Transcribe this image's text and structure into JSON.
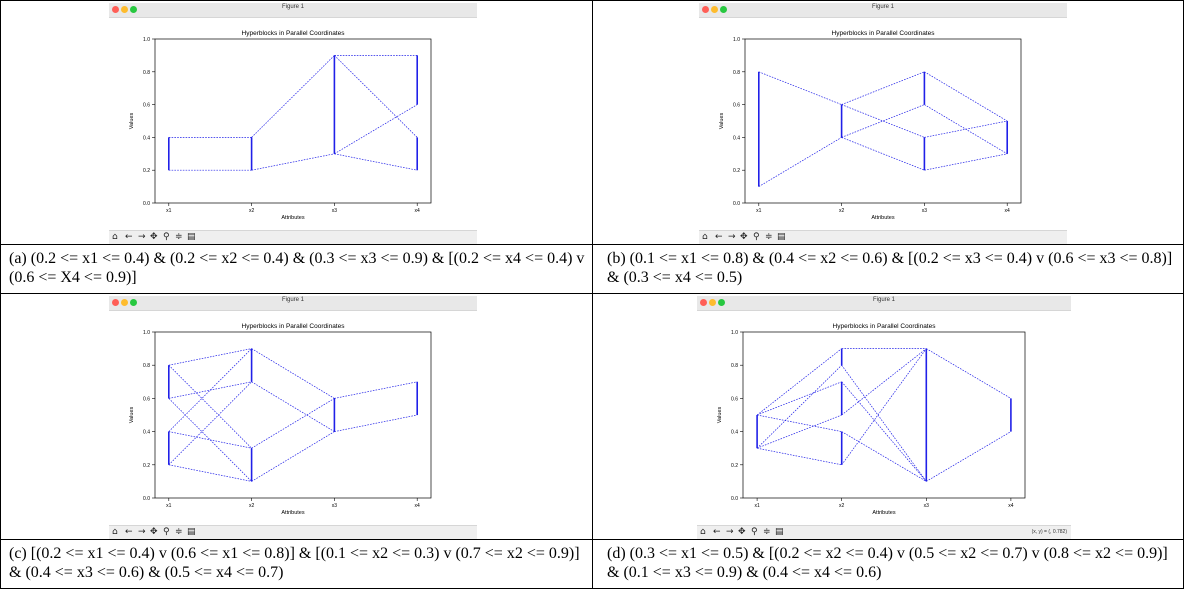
{
  "window_title": "Figure 1",
  "colors": {
    "line": "#2020e8",
    "text": "#000000"
  },
  "toolbar_icons": [
    "home-icon",
    "back-icon",
    "forward-icon",
    "pan-icon",
    "zoom-icon",
    "configure-icon",
    "save-icon"
  ],
  "toolbar_glyphs": [
    "⌂",
    "←",
    "→",
    "✥",
    "⚲",
    "≑",
    "▤"
  ],
  "status_text_d": "(x, y) = (, 0.782)",
  "captions": [
    "(a) (0.2 <= x1 <= 0.4) & (0.2 <= x2 <= 0.4) & (0.3 <= x3 <= 0.9) & [(0.2 <= x4 <= 0.4) v (0.6 <= X4 <= 0.9)]",
    "(b) (0.1 <= x1 <= 0.8) & (0.4 <= x2 <= 0.6) & [(0.2 <= x3 <= 0.4) v (0.6 <= x3 <= 0.8)] & (0.3 <= x4 <= 0.5)",
    "(c) [(0.2 <= x1 <= 0.4) v (0.6 <= x1 <= 0.8)] & [(0.1 <= x2 <= 0.3) v (0.7 <= x2 <= 0.9)] & (0.4 <= x3 <= 0.6) & (0.5 <= x4 <= 0.7)",
    "(d) (0.3 <= x1 <= 0.5) & [(0.2 <= x2 <= 0.4) v (0.5 <= x2 <= 0.7) v (0.8 <= x2 <= 0.9)] & (0.1 <= x3 <= 0.9) & (0.4 <= x4 <= 0.6)"
  ],
  "chart_data": [
    {
      "type": "line",
      "title": "Hyperblocks in Parallel Coordinates",
      "xlabel": "Attributes",
      "ylabel": "Values",
      "categories": [
        "x1",
        "x2",
        "x3",
        "x4"
      ],
      "ylim": [
        0,
        1
      ],
      "yticks": [
        "0.0",
        "0.2",
        "0.4",
        "0.6",
        "0.8",
        "1.0"
      ],
      "grid": false,
      "intervals": [
        [
          0.2,
          0.4
        ],
        [
          0.2,
          0.4
        ],
        [
          0.3,
          0.9
        ],
        [
          0.6,
          0.9
        ],
        [
          0.2,
          0.4
        ]
      ],
      "segments": [
        [
          1,
          0.2,
          2,
          0.2
        ],
        [
          1,
          0.4,
          2,
          0.4
        ],
        [
          2,
          0.2,
          3,
          0.3
        ],
        [
          2,
          0.4,
          3,
          0.9
        ],
        [
          3,
          0.3,
          4,
          0.6
        ],
        [
          3,
          0.9,
          4,
          0.9
        ],
        [
          3,
          0.3,
          4,
          0.2
        ],
        [
          3,
          0.9,
          4,
          0.4
        ]
      ]
    },
    {
      "type": "line",
      "title": "Hyperblocks in Parallel Coordinates",
      "xlabel": "Attributes",
      "ylabel": "Values",
      "categories": [
        "x1",
        "x2",
        "x3",
        "x4"
      ],
      "ylim": [
        0,
        1
      ],
      "yticks": [
        "0.0",
        "0.2",
        "0.4",
        "0.6",
        "0.8",
        "1.0"
      ],
      "grid": false,
      "intervals": [
        [
          0.1,
          0.8
        ],
        [
          0.4,
          0.6
        ],
        [
          0.2,
          0.4
        ],
        [
          0.3,
          0.5
        ],
        [
          0.6,
          0.8
        ]
      ],
      "segments": [
        [
          1,
          0.1,
          2,
          0.4
        ],
        [
          1,
          0.8,
          2,
          0.6
        ],
        [
          2,
          0.4,
          3,
          0.2
        ],
        [
          2,
          0.6,
          3,
          0.4
        ],
        [
          2,
          0.4,
          3,
          0.6
        ],
        [
          2,
          0.6,
          3,
          0.8
        ],
        [
          3,
          0.2,
          4,
          0.3
        ],
        [
          3,
          0.4,
          4,
          0.5
        ],
        [
          3,
          0.6,
          4,
          0.3
        ],
        [
          3,
          0.8,
          4,
          0.5
        ]
      ]
    },
    {
      "type": "line",
      "title": "Hyperblocks in Parallel Coordinates",
      "xlabel": "Attributes",
      "ylabel": "Values",
      "categories": [
        "x1",
        "x2",
        "x3",
        "x4"
      ],
      "ylim": [
        0,
        1
      ],
      "yticks": [
        "0.0",
        "0.2",
        "0.4",
        "0.6",
        "0.8",
        "1.0"
      ],
      "grid": false,
      "intervals": [
        [
          0.2,
          0.4
        ],
        [
          0.6,
          0.8
        ],
        [
          0.1,
          0.3
        ],
        [
          0.7,
          0.9
        ],
        [
          0.4,
          0.6
        ],
        [
          0.5,
          0.7
        ]
      ],
      "segments": [
        [
          1,
          0.2,
          2,
          0.1
        ],
        [
          1,
          0.4,
          2,
          0.3
        ],
        [
          1,
          0.6,
          2,
          0.1
        ],
        [
          1,
          0.8,
          2,
          0.3
        ],
        [
          1,
          0.2,
          2,
          0.7
        ],
        [
          1,
          0.4,
          2,
          0.9
        ],
        [
          1,
          0.6,
          2,
          0.7
        ],
        [
          1,
          0.8,
          2,
          0.9
        ],
        [
          2,
          0.1,
          3,
          0.4
        ],
        [
          2,
          0.3,
          3,
          0.6
        ],
        [
          2,
          0.7,
          3,
          0.4
        ],
        [
          2,
          0.9,
          3,
          0.6
        ],
        [
          3,
          0.4,
          4,
          0.5
        ],
        [
          3,
          0.6,
          4,
          0.7
        ]
      ]
    },
    {
      "type": "line",
      "title": "Hyperblocks in Parallel Coordinates",
      "xlabel": "Attributes",
      "ylabel": "Values",
      "categories": [
        "x1",
        "x2",
        "x3",
        "x4"
      ],
      "ylim": [
        0,
        1
      ],
      "yticks": [
        "0.0",
        "0.2",
        "0.4",
        "0.6",
        "0.8",
        "1.0"
      ],
      "grid": false,
      "intervals": [
        [
          0.3,
          0.5
        ],
        [
          0.2,
          0.4
        ],
        [
          0.5,
          0.7
        ],
        [
          0.8,
          0.9
        ],
        [
          0.1,
          0.9
        ],
        [
          0.4,
          0.6
        ]
      ],
      "segments": [
        [
          1,
          0.3,
          2,
          0.2
        ],
        [
          1,
          0.5,
          2,
          0.4
        ],
        [
          1,
          0.3,
          2,
          0.5
        ],
        [
          1,
          0.5,
          2,
          0.7
        ],
        [
          1,
          0.3,
          2,
          0.8
        ],
        [
          1,
          0.5,
          2,
          0.9
        ],
        [
          2,
          0.2,
          3,
          0.9
        ],
        [
          2,
          0.4,
          3,
          0.1
        ],
        [
          2,
          0.5,
          3,
          0.9
        ],
        [
          2,
          0.7,
          3,
          0.1
        ],
        [
          2,
          0.8,
          3,
          0.1
        ],
        [
          2,
          0.9,
          3,
          0.9
        ],
        [
          3,
          0.1,
          4,
          0.4
        ],
        [
          3,
          0.9,
          4,
          0.6
        ]
      ]
    }
  ]
}
